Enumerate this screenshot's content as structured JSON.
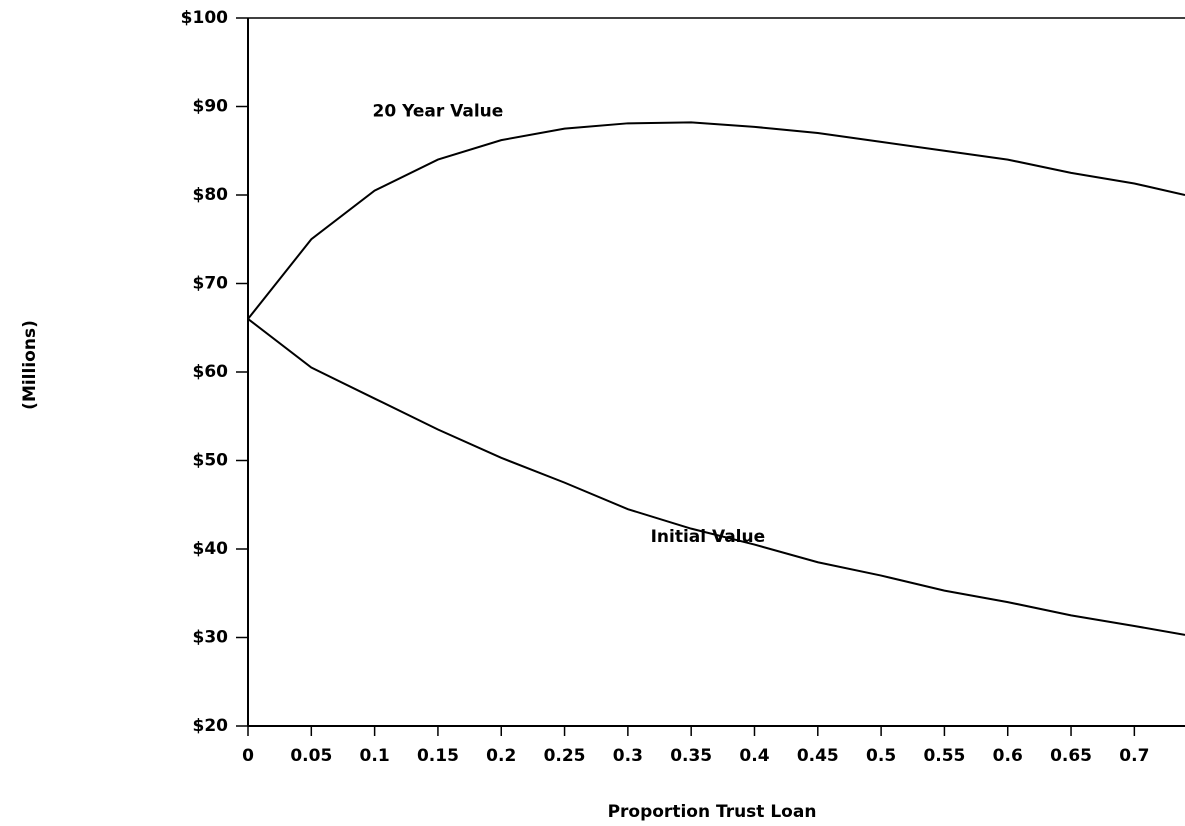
{
  "chart_data": {
    "type": "line",
    "x_label": "Proportion Trust Loan",
    "y_label": "(Millions)",
    "x": [
      0,
      0.05,
      0.1,
      0.15,
      0.2,
      0.25,
      0.3,
      0.35,
      0.4,
      0.45,
      0.5,
      0.55,
      0.6,
      0.65,
      0.7,
      0.74
    ],
    "series": [
      {
        "name": "20 Year Value",
        "color": "#000000",
        "values": [
          66,
          75,
          80.5,
          84,
          86.2,
          87.5,
          88.1,
          88.2,
          87.7,
          87,
          86,
          85,
          84,
          82.5,
          81.3,
          80
        ]
      },
      {
        "name": "Initial Value",
        "color": "#000000",
        "values": [
          66,
          60.5,
          57,
          53.5,
          50.3,
          47.5,
          44.5,
          42.3,
          40.5,
          38.5,
          37,
          35.3,
          34,
          32.5,
          31.3,
          30.3
        ]
      }
    ],
    "xlim": [
      0,
      0.74
    ],
    "xticks": [
      0,
      0.05,
      0.1,
      0.15,
      0.2,
      0.25,
      0.3,
      0.35,
      0.4,
      0.45,
      0.5,
      0.55,
      0.6,
      0.65,
      0.7
    ],
    "ylim": [
      20,
      100
    ],
    "yticks": [
      {
        "value": 20,
        "label": "$20"
      },
      {
        "value": 30,
        "label": "$30"
      },
      {
        "value": 40,
        "label": "$40"
      },
      {
        "value": 50,
        "label": "$50"
      },
      {
        "value": 60,
        "label": "$60"
      },
      {
        "value": 70,
        "label": "$70"
      },
      {
        "value": 80,
        "label": "$80"
      },
      {
        "value": 90,
        "label": "$90"
      },
      {
        "value": 100,
        "label": "$100"
      }
    ],
    "grid": false
  }
}
